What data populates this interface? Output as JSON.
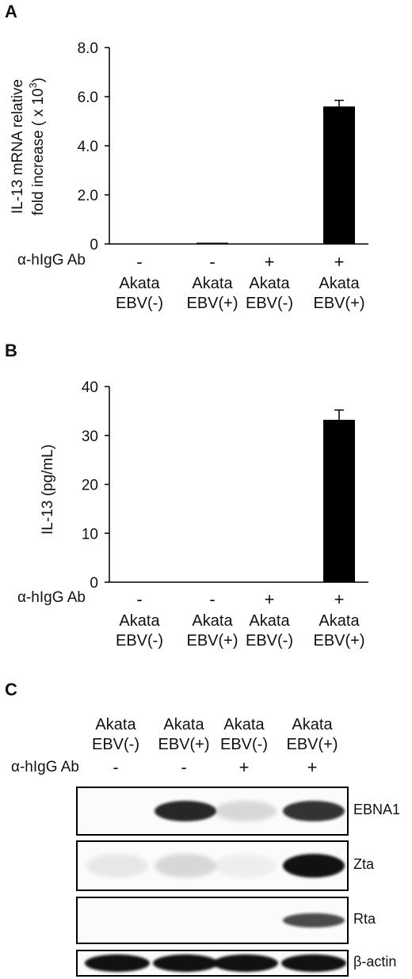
{
  "panels": {
    "a": {
      "label": "A"
    },
    "b": {
      "label": "B"
    },
    "c": {
      "label": "C"
    }
  },
  "treatment_label": "α-hIgG Ab",
  "lanes": [
    {
      "line1": "Akata",
      "line2": "EBV(-)",
      "treatment": "-"
    },
    {
      "line1": "Akata",
      "line2": "EBV(+)",
      "treatment": "-"
    },
    {
      "line1": "Akata",
      "line2": "EBV(-)",
      "treatment": "+"
    },
    {
      "line1": "Akata",
      "line2": "EBV(+)",
      "treatment": "+"
    }
  ],
  "chart_data": [
    {
      "type": "bar",
      "ylabel_line1": "IL-13 mRNA relative",
      "ylabel_line2": "fold increase ( x 10",
      "ylabel_exponent": "3",
      "ylabel_close": ")",
      "ylim": [
        0,
        8.0
      ],
      "yticks": [
        {
          "value": 0,
          "label": "0"
        },
        {
          "value": 2.0,
          "label": "2.0"
        },
        {
          "value": 4.0,
          "label": "4.0"
        },
        {
          "value": 6.0,
          "label": "6.0"
        },
        {
          "value": 8.0,
          "label": "8.0"
        }
      ],
      "values": [
        0.0,
        0.05,
        0.0,
        5.6
      ],
      "errors": [
        0,
        0,
        0,
        0.25
      ],
      "bar_color": "#000000"
    },
    {
      "type": "bar",
      "ylabel": "IL-13 (pg/mL)",
      "ylim": [
        0,
        40
      ],
      "yticks": [
        {
          "value": 0,
          "label": "0"
        },
        {
          "value": 10,
          "label": "10"
        },
        {
          "value": 20,
          "label": "20"
        },
        {
          "value": 30,
          "label": "30"
        },
        {
          "value": 40,
          "label": "40"
        }
      ],
      "values": [
        0,
        0,
        0,
        33.2
      ],
      "errors": [
        0,
        0,
        0,
        2.0
      ],
      "bar_color": "#000000"
    }
  ],
  "western_blot": {
    "bands": [
      {
        "name": "EBNA1",
        "intensities": [
          0.0,
          0.9,
          0.15,
          0.85
        ]
      },
      {
        "name": "Zta",
        "intensities": [
          0.08,
          0.15,
          0.05,
          1.0
        ]
      },
      {
        "name": "Rta",
        "intensities": [
          0.0,
          0.0,
          0.0,
          0.75
        ]
      },
      {
        "name": "β-actin",
        "intensities": [
          1.0,
          1.0,
          1.0,
          1.0
        ]
      }
    ]
  }
}
